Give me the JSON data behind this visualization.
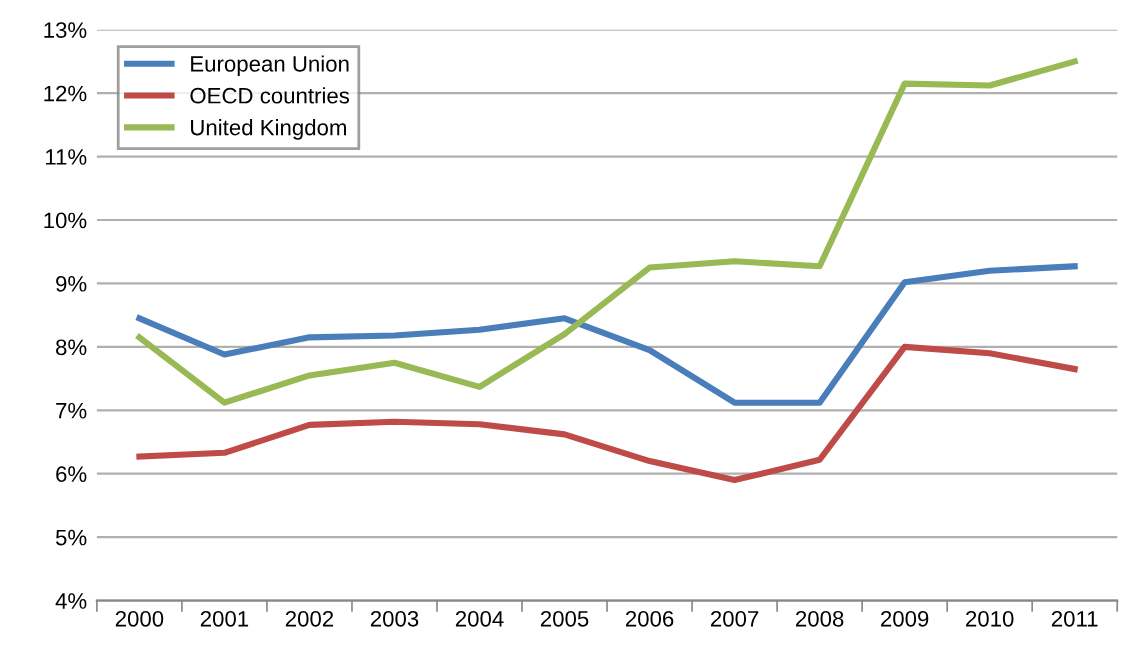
{
  "chart_data": {
    "type": "line",
    "categories": [
      "2000",
      "2001",
      "2002",
      "2003",
      "2004",
      "2005",
      "2006",
      "2007",
      "2008",
      "2009",
      "2010",
      "2011"
    ],
    "series": [
      {
        "name": "European Union",
        "color": "#4a7ebb",
        "values": [
          8.45,
          7.88,
          8.15,
          8.18,
          8.27,
          8.45,
          7.95,
          7.12,
          7.12,
          9.02,
          9.2,
          9.27
        ]
      },
      {
        "name": "OECD countries",
        "color": "#be4b48",
        "values": [
          6.27,
          6.33,
          6.77,
          6.82,
          6.78,
          6.62,
          6.2,
          5.9,
          6.22,
          8.0,
          7.9,
          7.65
        ]
      },
      {
        "name": "United Kingdom",
        "color": "#98b954",
        "values": [
          8.15,
          7.12,
          7.55,
          7.75,
          7.37,
          8.2,
          9.25,
          9.35,
          9.27,
          12.15,
          12.12,
          12.5
        ]
      }
    ],
    "ylim": [
      4,
      13
    ],
    "yticks": [
      {
        "value": 4,
        "label": "4%"
      },
      {
        "value": 5,
        "label": "5%"
      },
      {
        "value": 6,
        "label": "6%"
      },
      {
        "value": 7,
        "label": "7%"
      },
      {
        "value": 8,
        "label": "8%"
      },
      {
        "value": 9,
        "label": "9%"
      },
      {
        "value": 10,
        "label": "10%"
      },
      {
        "value": 11,
        "label": "11%"
      },
      {
        "value": 12,
        "label": "12%"
      },
      {
        "value": 13,
        "label": "13%"
      }
    ],
    "grid": "y",
    "legend": "top left",
    "marker": "none",
    "line_style": "solid"
  }
}
